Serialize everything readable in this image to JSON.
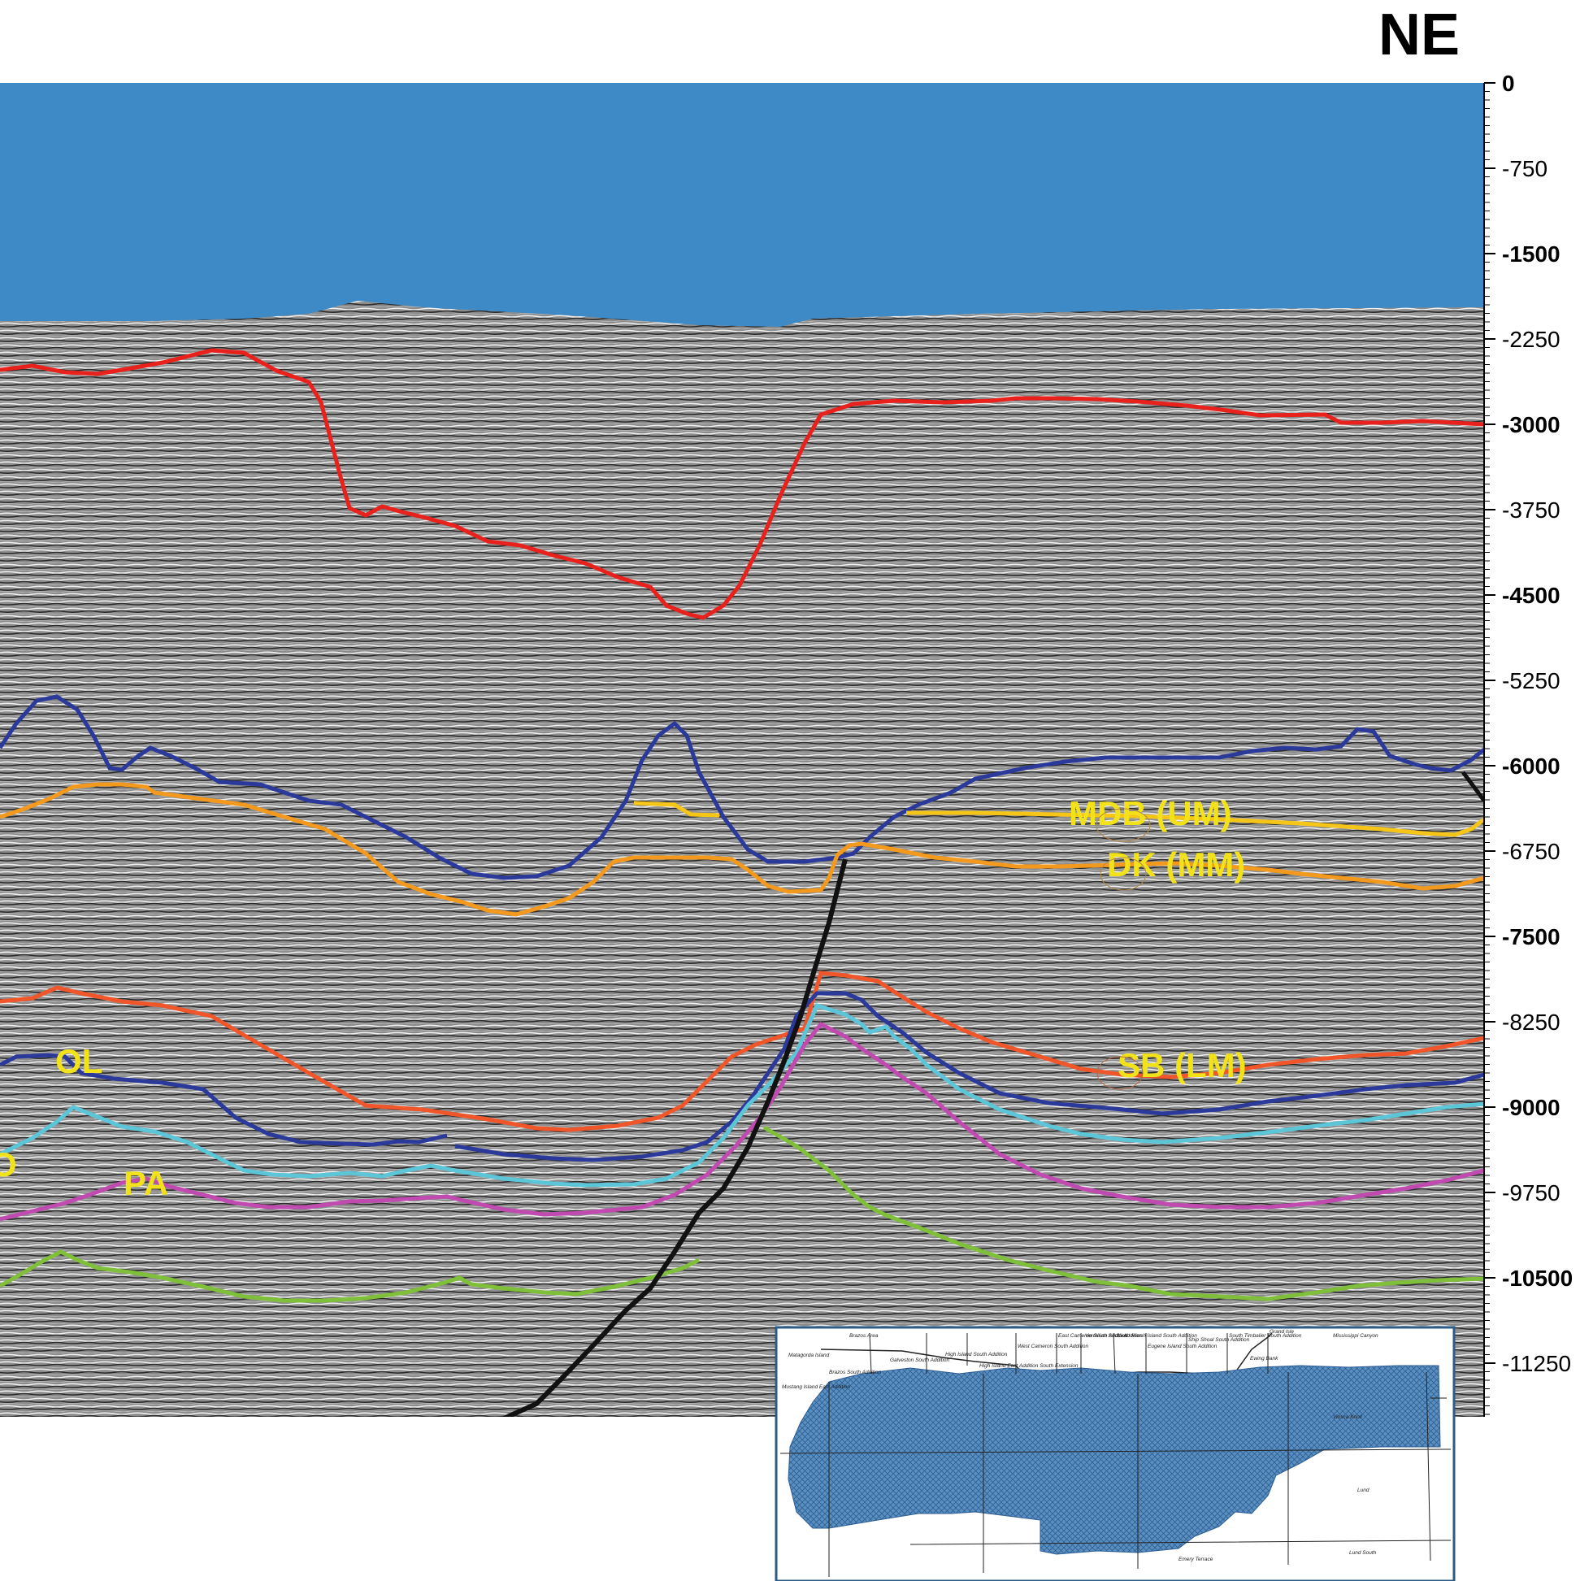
{
  "direction_label": "NE",
  "depth_axis": {
    "ticks": [
      {
        "value": "0",
        "major": true
      },
      {
        "value": "-750",
        "major": false
      },
      {
        "value": "-1500",
        "major": true
      },
      {
        "value": "-2250",
        "major": false
      },
      {
        "value": "-3000",
        "major": true
      },
      {
        "value": "-3750",
        "major": false
      },
      {
        "value": "-4500",
        "major": true
      },
      {
        "value": "-5250",
        "major": false
      },
      {
        "value": "-6000",
        "major": true
      },
      {
        "value": "-6750",
        "major": false
      },
      {
        "value": "-7500",
        "major": true
      },
      {
        "value": "-8250",
        "major": false
      },
      {
        "value": "-9000",
        "major": true
      },
      {
        "value": "-9750",
        "major": false
      },
      {
        "value": "-10500",
        "major": true
      },
      {
        "value": "-11250",
        "major": false
      }
    ]
  },
  "horizon_labels": {
    "mdb": "MDB (UM)",
    "dk": "DK (MM)",
    "sb": "SB (LM)",
    "ol": "OL",
    "pa": "PA",
    "o": "O"
  },
  "colors": {
    "water": "#3d8ac6",
    "seismic": "#8a8a8a",
    "red": "#e8211c",
    "blue": "#2b3a9a",
    "orange": "#f39a1e",
    "yellow": "#f5c518",
    "orange_red": "#f0562a",
    "cyan": "#5cc6d8",
    "magenta": "#c04ab0",
    "green": "#7fbf3a",
    "fault": "#111111",
    "label": "#f2e21a"
  },
  "inset_map": {
    "areas": [
      "Brazos Area",
      "Matagorda Island",
      "Brazos South Addition",
      "Galveston South Addition",
      "High Island South Addition",
      "High Island East Addition South Extension",
      "West Cameron South Addition",
      "East Cameron South Addition",
      "Vermilion South Addition",
      "South Marsh Island South Addition",
      "Eugene Island South Addition",
      "Ship Shoal South Addition",
      "South Timbalier South Addition",
      "Grand Isle",
      "Mississippi Canyon",
      "Ewing Bank",
      "Mustang Island East Addition",
      "Viosca Knoll",
      "Lund",
      "Lund South",
      "Emery Terrace"
    ]
  }
}
